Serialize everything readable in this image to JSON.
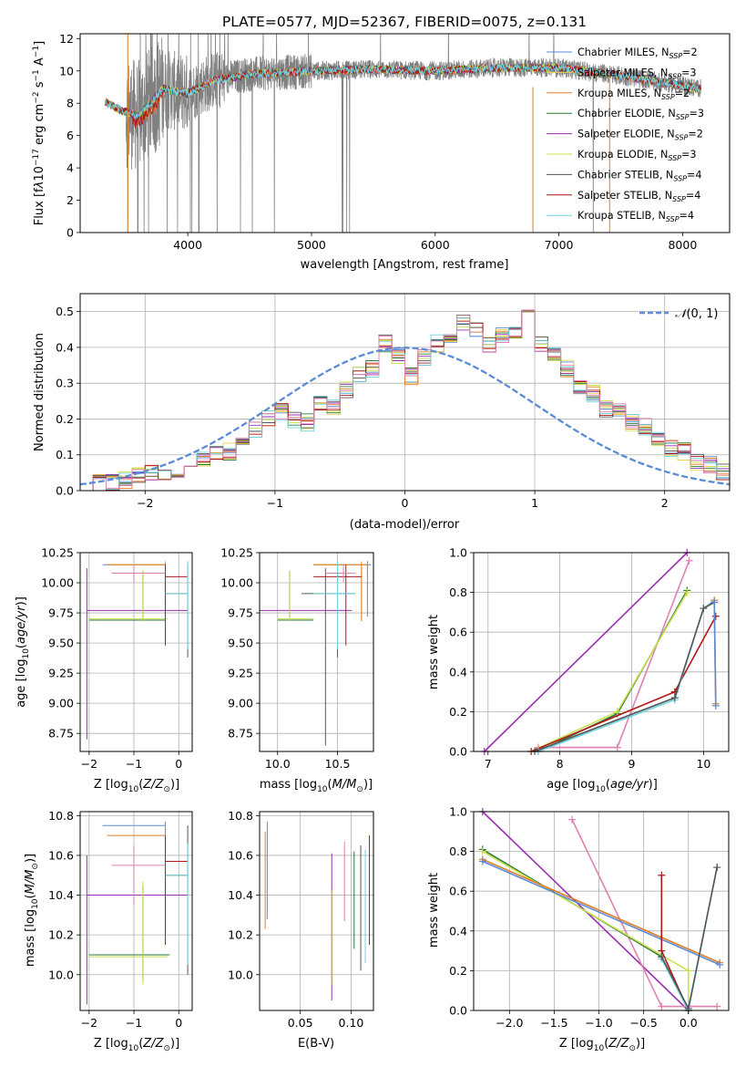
{
  "figure_title": "PLATE=0577, MJD=52367, FIBERID=0075, z=0.131",
  "colors": {
    "chabrier_miles": "#5b8bd6",
    "salpeter_miles": "#e8d44d",
    "kroupa_miles": "#e07b20",
    "chabrier_elodie": "#2a7b3a",
    "salpeter_elodie": "#9a2fb0",
    "kroupa_elodie": "#c9e04a",
    "chabrier_stelib": "#555555",
    "salpeter_stelib": "#b01818",
    "kroupa_stelib": "#70d4e0",
    "pink": "#e080b0",
    "data_gray": "#808080",
    "normal_dash": "#5b8bd6"
  },
  "chart_data": [
    {
      "type": "line",
      "id": "spectrum",
      "xlabel": "wavelength [Angstrom, rest frame]",
      "ylabel": "Flux [f_λ 10^-17 erg cm^-2 s^-1 A^-1]",
      "xlim": [
        3130,
        8380
      ],
      "ylim": [
        0,
        12.3
      ],
      "xticks": [
        4000,
        5000,
        6000,
        7000,
        8000
      ],
      "yticks": [
        0,
        2,
        4,
        6,
        8,
        10,
        12
      ],
      "data_range_x": [
        3330,
        8150
      ],
      "model_level": [
        {
          "x": 3330,
          "y": 8.1
        },
        {
          "x": 3450,
          "y": 7.6
        },
        {
          "x": 3600,
          "y": 7.2
        },
        {
          "x": 3800,
          "y": 8.9
        },
        {
          "x": 4000,
          "y": 8.6
        },
        {
          "x": 4200,
          "y": 9.4
        },
        {
          "x": 4500,
          "y": 9.8
        },
        {
          "x": 5000,
          "y": 10.0
        },
        {
          "x": 5500,
          "y": 10.1
        },
        {
          "x": 6000,
          "y": 10.0
        },
        {
          "x": 6500,
          "y": 10.2
        },
        {
          "x": 7000,
          "y": 10.2
        },
        {
          "x": 7500,
          "y": 9.7
        },
        {
          "x": 8150,
          "y": 8.9
        }
      ],
      "legend": [
        {
          "label": "Chabrier MILES, N_SSP=2",
          "color_key": "chabrier_miles"
        },
        {
          "label": "Salpeter MILES, N_SSP=3",
          "color_key": "salpeter_miles"
        },
        {
          "label": "Kroupa MILES, N_SSP=2",
          "color_key": "kroupa_miles"
        },
        {
          "label": "Chabrier ELODIE, N_SSP=3",
          "color_key": "chabrier_elodie"
        },
        {
          "label": "Salpeter ELODIE, N_SSP=2",
          "color_key": "salpeter_elodie"
        },
        {
          "label": "Kroupa ELODIE, N_SSP=3",
          "color_key": "kroupa_elodie"
        },
        {
          "label": "Chabrier STELIB, N_SSP=4",
          "color_key": "chabrier_stelib"
        },
        {
          "label": "Salpeter STELIB, N_SSP=4",
          "color_key": "salpeter_stelib"
        },
        {
          "label": "Kroupa STELIB, N_SSP=4",
          "color_key": "kroupa_stelib"
        }
      ],
      "grid": false
    },
    {
      "type": "area",
      "id": "residuals",
      "xlabel": "(data-model)/error",
      "ylabel": "Normed distribution",
      "xlim": [
        -2.5,
        2.5
      ],
      "ylim": [
        0,
        0.55
      ],
      "xticks": [
        -2,
        -1,
        0,
        1,
        2
      ],
      "yticks": [
        0.0,
        0.1,
        0.2,
        0.3,
        0.4,
        0.5
      ],
      "bin_width": 0.1,
      "bin_start": -2.5,
      "histogram_values": [
        0.01,
        0.02,
        0.02,
        0.03,
        0.04,
        0.05,
        0.05,
        0.06,
        0.08,
        0.09,
        0.1,
        0.11,
        0.14,
        0.17,
        0.2,
        0.22,
        0.2,
        0.19,
        0.24,
        0.23,
        0.28,
        0.32,
        0.34,
        0.41,
        0.38,
        0.32,
        0.37,
        0.41,
        0.43,
        0.47,
        0.45,
        0.41,
        0.43,
        0.44,
        0.48,
        0.41,
        0.38,
        0.34,
        0.29,
        0.27,
        0.23,
        0.22,
        0.19,
        0.18,
        0.15,
        0.12,
        0.11,
        0.08,
        0.07,
        0.05
      ],
      "legend": [
        {
          "label": "N(0,1)",
          "style": "dashed",
          "color_key": "normal_dash"
        }
      ],
      "legend_position": "top-right",
      "grid": true
    },
    {
      "type": "scatter",
      "id": "age_vs_Z",
      "xlabel": "Z [log10(Z/Z⊙)]",
      "ylabel": "age [log10(age/yr)]",
      "xlim": [
        -2.2,
        0.3
      ],
      "ylim": [
        8.6,
        10.25
      ],
      "xticks": [
        -2,
        -1,
        0
      ],
      "yticks": [
        8.75,
        9.0,
        9.25,
        9.5,
        9.75,
        10.0,
        10.25
      ],
      "crosses": [
        {
          "c": "chabrier_miles",
          "x": -0.3,
          "y": 10.15,
          "xe": [
            -1.7,
            -0.3
          ],
          "ye": [
            9.72,
            10.18
          ]
        },
        {
          "c": "salpeter_miles",
          "x": -0.3,
          "y": 10.15,
          "xe": [
            -1.6,
            -0.3
          ],
          "ye": [
            9.7,
            10.18
          ]
        },
        {
          "c": "kroupa_miles",
          "x": -0.3,
          "y": 10.15,
          "xe": [
            -1.6,
            -0.3
          ],
          "ye": [
            9.75,
            10.17
          ]
        },
        {
          "c": "chabrier_elodie",
          "x": -0.8,
          "y": 9.69,
          "xe": [
            -2.0,
            -0.3
          ],
          "ye": [
            9.69,
            10.1
          ]
        },
        {
          "c": "salpeter_elodie",
          "x": -2.05,
          "y": 9.77,
          "xe": [
            -2.05,
            0.2
          ],
          "ye": [
            8.7,
            10.12
          ]
        },
        {
          "c": "kroupa_elodie",
          "x": -0.8,
          "y": 9.7,
          "xe": [
            -2.0,
            -0.25
          ],
          "ye": [
            9.68,
            10.1
          ]
        },
        {
          "c": "chabrier_stelib",
          "x": 0.2,
          "y": 9.91,
          "xe": [
            -0.3,
            0.2
          ],
          "ye": [
            9.38,
            10.15
          ]
        },
        {
          "c": "salpeter_stelib",
          "x": -0.3,
          "y": 10.05,
          "xe": [
            -0.3,
            0.2
          ],
          "ye": [
            9.48,
            10.15
          ]
        },
        {
          "c": "kroupa_stelib",
          "x": 0.2,
          "y": 9.91,
          "xe": [
            -0.3,
            0.2
          ],
          "ye": [
            9.45,
            10.18
          ]
        },
        {
          "c": "pink",
          "x": -1.0,
          "y": 10.08,
          "xe": [
            -1.5,
            -0.3
          ],
          "ye": [
            10.0,
            10.15
          ]
        }
      ],
      "grid": true
    },
    {
      "type": "scatter",
      "id": "age_vs_mass",
      "xlabel": "mass [log10(M/M⊙)]",
      "ylabel": "",
      "xlim": [
        9.85,
        10.8
      ],
      "ylim": [
        8.6,
        10.25
      ],
      "xticks": [
        10.0,
        10.5
      ],
      "yticks": [
        8.75,
        9.0,
        9.25,
        9.5,
        9.75,
        10.0,
        10.25
      ],
      "crosses": [
        {
          "c": "chabrier_miles",
          "x": 10.75,
          "y": 10.15,
          "xe": [
            10.3,
            10.78
          ],
          "ye": [
            9.72,
            10.18
          ]
        },
        {
          "c": "salpeter_miles",
          "x": 10.7,
          "y": 10.15,
          "xe": [
            10.3,
            10.75
          ],
          "ye": [
            9.7,
            10.18
          ]
        },
        {
          "c": "kroupa_miles",
          "x": 10.7,
          "y": 10.15,
          "xe": [
            10.3,
            10.75
          ],
          "ye": [
            9.68,
            10.17
          ]
        },
        {
          "c": "chabrier_elodie",
          "x": 10.1,
          "y": 9.69,
          "xe": [
            10.0,
            10.3
          ],
          "ye": [
            9.69,
            10.1
          ]
        },
        {
          "c": "salpeter_elodie",
          "x": 10.4,
          "y": 9.77,
          "xe": [
            9.85,
            10.62
          ],
          "ye": [
            8.65,
            10.12
          ]
        },
        {
          "c": "kroupa_elodie",
          "x": 10.1,
          "y": 9.7,
          "xe": [
            10.0,
            10.3
          ],
          "ye": [
            9.68,
            10.1
          ]
        },
        {
          "c": "chabrier_stelib",
          "x": 10.5,
          "y": 9.91,
          "xe": [
            10.2,
            10.65
          ],
          "ye": [
            9.38,
            10.15
          ]
        },
        {
          "c": "salpeter_stelib",
          "x": 10.57,
          "y": 10.05,
          "xe": [
            10.3,
            10.7
          ],
          "ye": [
            9.48,
            10.15
          ]
        },
        {
          "c": "kroupa_stelib",
          "x": 10.5,
          "y": 9.91,
          "xe": [
            10.3,
            10.65
          ],
          "ye": [
            9.45,
            10.18
          ]
        },
        {
          "c": "pink",
          "x": 10.55,
          "y": 10.08,
          "xe": [
            10.4,
            10.65
          ],
          "ye": [
            10.0,
            10.15
          ]
        }
      ],
      "grid": true
    },
    {
      "type": "line",
      "id": "weight_vs_age",
      "xlabel": "age [log10(age/yr)]",
      "ylabel": "mass weight",
      "xlim": [
        6.8,
        10.35
      ],
      "ylim": [
        0,
        1.0
      ],
      "xticks": [
        7,
        8,
        9,
        10
      ],
      "yticks": [
        0.0,
        0.2,
        0.4,
        0.6,
        0.8,
        1.0
      ],
      "series": [
        {
          "c": "salpeter_elodie",
          "points": [
            [
              6.95,
              0.0
            ],
            [
              9.77,
              1.0
            ]
          ]
        },
        {
          "c": "pink",
          "points": [
            [
              7.7,
              0.02
            ],
            [
              8.8,
              0.02
            ],
            [
              9.8,
              0.96
            ]
          ]
        },
        {
          "c": "chabrier_elodie",
          "points": [
            [
              7.7,
              0.0
            ],
            [
              8.8,
              0.19
            ],
            [
              9.77,
              0.81
            ]
          ]
        },
        {
          "c": "kroupa_elodie",
          "points": [
            [
              7.6,
              0.0
            ],
            [
              8.8,
              0.2
            ],
            [
              9.77,
              0.8
            ]
          ]
        },
        {
          "c": "salpeter_stelib",
          "points": [
            [
              7.6,
              0.0
            ],
            [
              9.6,
              0.3
            ],
            [
              10.17,
              0.68
            ]
          ]
        },
        {
          "c": "kroupa_stelib",
          "points": [
            [
              7.7,
              0.0
            ],
            [
              9.6,
              0.26
            ],
            [
              10.0,
              0.72
            ],
            [
              10.15,
              0.76
            ]
          ]
        },
        {
          "c": "chabrier_stelib",
          "points": [
            [
              7.65,
              0.0
            ],
            [
              9.6,
              0.27
            ],
            [
              10.0,
              0.72
            ],
            [
              10.15,
              0.75
            ]
          ]
        },
        {
          "c": "kroupa_miles",
          "points": [
            [
              10.15,
              0.76
            ],
            [
              10.17,
              0.24
            ]
          ]
        },
        {
          "c": "chabrier_miles",
          "points": [
            [
              10.15,
              0.75
            ],
            [
              10.17,
              0.23
            ]
          ]
        }
      ],
      "grid": true
    },
    {
      "type": "scatter",
      "id": "mass_vs_Z",
      "xlabel": "Z [log10(Z/Z⊙)]",
      "ylabel": "mass [log10(M/M⊙)]",
      "xlim": [
        -2.2,
        0.3
      ],
      "ylim": [
        9.82,
        10.82
      ],
      "xticks": [
        -2,
        -1,
        0
      ],
      "yticks": [
        10.0,
        10.2,
        10.4,
        10.6,
        10.8
      ],
      "crosses": [
        {
          "c": "chabrier_miles",
          "x": -0.3,
          "y": 10.75,
          "xe": [
            -1.7,
            -0.3
          ],
          "ye": [
            10.7,
            10.77
          ]
        },
        {
          "c": "kroupa_miles",
          "x": -0.3,
          "y": 10.7,
          "xe": [
            -1.6,
            -0.3
          ],
          "ye": [
            10.66,
            10.72
          ]
        },
        {
          "c": "chabrier_elodie",
          "x": -0.8,
          "y": 10.1,
          "xe": [
            -2.0,
            -0.2
          ],
          "ye": [
            9.97,
            10.45
          ]
        },
        {
          "c": "salpeter_elodie",
          "x": -2.05,
          "y": 10.4,
          "xe": [
            -2.05,
            0.2
          ],
          "ye": [
            9.85,
            10.6
          ]
        },
        {
          "c": "kroupa_elodie",
          "x": -0.8,
          "y": 10.09,
          "xe": [
            -2.0,
            -0.25
          ],
          "ye": [
            9.95,
            10.47
          ]
        },
        {
          "c": "chabrier_stelib",
          "x": 0.2,
          "y": 10.5,
          "xe": [
            -0.3,
            0.2
          ],
          "ye": [
            10.0,
            10.75
          ]
        },
        {
          "c": "salpeter_stelib",
          "x": -0.3,
          "y": 10.57,
          "xe": [
            -0.3,
            0.2
          ],
          "ye": [
            10.15,
            10.7
          ]
        },
        {
          "c": "kroupa_stelib",
          "x": 0.2,
          "y": 10.5,
          "xe": [
            -0.3,
            0.2
          ],
          "ye": [
            10.05,
            10.66
          ]
        },
        {
          "c": "pink",
          "x": -1.0,
          "y": 10.55,
          "xe": [
            -1.5,
            -0.3
          ],
          "ye": [
            10.35,
            10.65
          ]
        }
      ],
      "grid": true
    },
    {
      "type": "scatter",
      "id": "mass_vs_ebv",
      "xlabel": "E(B-V)",
      "ylabel": "",
      "xlim": [
        0.01,
        0.122
      ],
      "ylim": [
        9.82,
        10.82
      ],
      "xticks": [
        0.05,
        0.1
      ],
      "yticks": [
        10.0,
        10.2,
        10.4,
        10.6,
        10.8
      ],
      "bars": [
        {
          "c": "chabrier_miles",
          "x": 0.0175,
          "ye": [
            10.28,
            10.77
          ]
        },
        {
          "c": "kroupa_miles",
          "x": 0.0155,
          "ye": [
            10.23,
            10.72
          ]
        },
        {
          "c": "salpeter_elodie",
          "x": 0.081,
          "ye": [
            9.87,
            10.61
          ]
        },
        {
          "c": "kroupa_elodie",
          "x": 0.0815,
          "ye": [
            9.95,
            10.43
          ]
        },
        {
          "c": "pink",
          "x": 0.0935,
          "ye": [
            10.27,
            10.67
          ]
        },
        {
          "c": "chabrier_stelib",
          "x": 0.1095,
          "ye": [
            10.02,
            10.65
          ]
        },
        {
          "c": "salpeter_stelib",
          "x": 0.118,
          "ye": [
            10.15,
            10.7
          ]
        },
        {
          "c": "kroupa_stelib",
          "x": 0.114,
          "ye": [
            10.06,
            10.63
          ]
        },
        {
          "c": "chabrier_elodie",
          "x": 0.103,
          "ye": [
            10.13,
            10.62
          ]
        }
      ],
      "grid": true
    },
    {
      "type": "line",
      "id": "weight_vs_Z",
      "xlabel": "Z [log10(Z/Z⊙)]",
      "ylabel": "mass weight",
      "xlim": [
        -2.4,
        0.45
      ],
      "ylim": [
        0,
        1.0
      ],
      "xticks": [
        -2.0,
        -1.5,
        -1.0,
        -0.5,
        0.0
      ],
      "yticks": [
        0.0,
        0.2,
        0.4,
        0.6,
        0.8,
        1.0
      ],
      "series": [
        {
          "c": "salpeter_elodie",
          "points": [
            [
              -2.3,
              1.0
            ],
            [
              0.0,
              0.0
            ]
          ]
        },
        {
          "c": "pink",
          "points": [
            [
              -1.3,
              0.96
            ],
            [
              -0.3,
              0.02
            ],
            [
              0.32,
              0.02
            ]
          ]
        },
        {
          "c": "chabrier_elodie",
          "points": [
            [
              -2.3,
              0.81
            ],
            [
              -0.3,
              0.27
            ],
            [
              0.0,
              0.0
            ]
          ]
        },
        {
          "c": "kroupa_elodie",
          "points": [
            [
              -2.3,
              0.8
            ],
            [
              0.0,
              0.2
            ],
            [
              0.0,
              0.0
            ]
          ]
        },
        {
          "c": "kroupa_miles",
          "points": [
            [
              -2.3,
              0.76
            ],
            [
              0.35,
              0.24
            ]
          ]
        },
        {
          "c": "chabrier_miles",
          "points": [
            [
              -2.3,
              0.75
            ],
            [
              0.35,
              0.23
            ]
          ]
        },
        {
          "c": "salpeter_stelib",
          "points": [
            [
              -0.3,
              0.68
            ],
            [
              -0.3,
              0.3
            ],
            [
              0.0,
              0.0
            ]
          ]
        },
        {
          "c": "kroupa_stelib",
          "points": [
            [
              -0.3,
              0.26
            ],
            [
              0.0,
              0.0
            ],
            [
              0.32,
              0.72
            ]
          ]
        },
        {
          "c": "chabrier_stelib",
          "points": [
            [
              -0.3,
              0.27
            ],
            [
              0.0,
              0.01
            ],
            [
              0.32,
              0.72
            ]
          ]
        }
      ],
      "grid": true
    }
  ]
}
